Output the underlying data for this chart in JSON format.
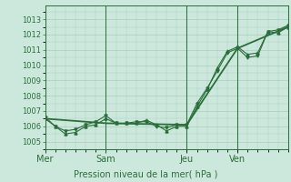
{
  "background_color": "#cce8dc",
  "grid_color": "#aaccbb",
  "line_color": "#2a6e3a",
  "xlabel": "Pression niveau de la mer( hPa )",
  "yticks": [
    1005,
    1006,
    1007,
    1008,
    1009,
    1010,
    1011,
    1012,
    1013
  ],
  "ylim": [
    1004.5,
    1013.9
  ],
  "day_labels": [
    "Mer",
    "Sam",
    "Jeu",
    "Ven"
  ],
  "day_positions": [
    0.0,
    0.25,
    0.583,
    0.792
  ],
  "vline_positions": [
    0.0,
    0.25,
    0.583,
    0.792
  ],
  "series1_x": [
    0.0,
    0.042,
    0.083,
    0.125,
    0.167,
    0.208,
    0.25,
    0.292,
    0.333,
    0.375,
    0.417,
    0.458,
    0.5,
    0.542,
    0.583,
    0.625,
    0.667,
    0.708,
    0.75,
    0.792,
    0.833,
    0.875,
    0.917,
    0.958,
    1.0
  ],
  "series1_y": [
    1006.6,
    1006.0,
    1005.7,
    1005.8,
    1006.1,
    1006.3,
    1006.7,
    1006.2,
    1006.2,
    1006.3,
    1006.3,
    1006.0,
    1005.9,
    1006.1,
    1006.1,
    1007.5,
    1008.5,
    1009.6,
    1010.8,
    1011.1,
    1010.5,
    1010.6,
    1012.2,
    1012.3,
    1012.6
  ],
  "series2_x": [
    0.0,
    0.042,
    0.083,
    0.125,
    0.167,
    0.208,
    0.25,
    0.292,
    0.333,
    0.375,
    0.417,
    0.458,
    0.5,
    0.542,
    0.583,
    0.625,
    0.667,
    0.708,
    0.75,
    0.792,
    0.833,
    0.875,
    0.917,
    0.958,
    1.0
  ],
  "series2_y": [
    1006.5,
    1006.0,
    1005.5,
    1005.6,
    1006.0,
    1006.1,
    1006.5,
    1006.2,
    1006.2,
    1006.2,
    1006.4,
    1006.1,
    1005.7,
    1006.0,
    1006.0,
    1007.3,
    1008.4,
    1009.8,
    1010.9,
    1011.2,
    1010.7,
    1010.8,
    1012.2,
    1012.1,
    1012.5
  ],
  "series3_x": [
    0.0,
    0.25,
    0.583,
    0.792,
    1.0
  ],
  "series3_y": [
    1006.5,
    1006.2,
    1006.1,
    1011.1,
    1012.5
  ]
}
